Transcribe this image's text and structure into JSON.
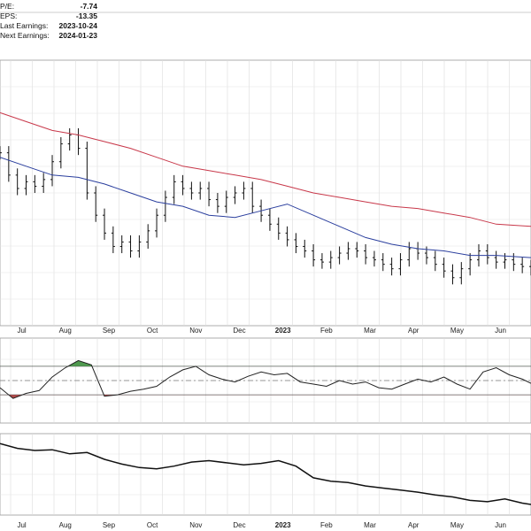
{
  "fundamentals": [
    {
      "label": "P/E:",
      "value": "-7.74"
    },
    {
      "label": "EPS:",
      "value": "-13.35"
    },
    {
      "label": "Last Earnings:",
      "value": "2023-10-24"
    },
    {
      "label": "Next Earnings:",
      "value": "2024-01-23"
    }
  ],
  "chart_data": {
    "type": "line",
    "title": "",
    "xlabel": "",
    "ylabel": "",
    "grid": true,
    "x_tick_labels": [
      "Jul",
      "Aug",
      "Sep",
      "Oct",
      "Nov",
      "Dec",
      "2023",
      "Feb",
      "Mar",
      "Apr",
      "May",
      "Jun"
    ],
    "x_tick_bold": [
      false,
      false,
      false,
      false,
      false,
      false,
      true,
      false,
      false,
      false,
      false,
      false
    ],
    "x_tick_positions": [
      0.5,
      1.5,
      2.5,
      3.5,
      4.5,
      5.5,
      6.5,
      7.5,
      8.5,
      9.5,
      10.5,
      11.5
    ],
    "xlim": [
      0,
      12.2
    ],
    "panels": [
      {
        "name": "price",
        "ylim": [
          0,
          100
        ],
        "series": [
          {
            "kind": "ohlc",
            "color": "#111111",
            "x": [
              0.0,
              0.2,
              0.4,
              0.6,
              0.8,
              1.0,
              1.2,
              1.4,
              1.6,
              1.8,
              2.0,
              2.2,
              2.4,
              2.6,
              2.8,
              3.0,
              3.2,
              3.4,
              3.6,
              3.8,
              4.0,
              4.2,
              4.4,
              4.6,
              4.8,
              5.0,
              5.2,
              5.4,
              5.6,
              5.8,
              6.0,
              6.2,
              6.4,
              6.6,
              6.8,
              7.0,
              7.2,
              7.4,
              7.6,
              7.8,
              8.0,
              8.2,
              8.4,
              8.6,
              8.8,
              9.0,
              9.2,
              9.4,
              9.6,
              9.8,
              10.0,
              10.2,
              10.4,
              10.6,
              10.8,
              11.0,
              11.2,
              11.4,
              11.6,
              11.8,
              12.0,
              12.2
            ],
            "close": [
              68,
              58,
              52,
              55,
              53,
              56,
              64,
              72,
              76,
              70,
              50,
              40,
              32,
              26,
              28,
              24,
              28,
              33,
              40,
              48,
              55,
              52,
              50,
              52,
              47,
              44,
              48,
              50,
              52,
              44,
              40,
              36,
              32,
              29,
              26,
              24,
              20,
              19,
              21,
              23,
              25,
              24,
              21,
              20,
              18,
              16,
              20,
              25,
              23,
              21,
              18,
              15,
              12,
              16,
              20,
              24,
              21,
              19,
              20,
              18,
              17,
              16
            ]
          },
          {
            "kind": "line",
            "name": "",
            "color": "#2b3f9e",
            "x": [
              0.0,
              0.6,
              1.2,
              1.8,
              2.4,
              3.0,
              3.6,
              4.2,
              4.8,
              5.4,
              6.0,
              6.6,
              7.2,
              7.8,
              8.4,
              9.0,
              9.6,
              10.2,
              10.8,
              11.4,
              12.2
            ],
            "values": [
              66,
              62,
              58,
              57,
              54,
              50,
              46,
              44,
              40,
              39,
              42,
              45,
              40,
              35,
              30,
              27,
              25,
              24,
              22,
              22,
              21
            ]
          },
          {
            "kind": "line",
            "name": "",
            "color": "#c8384a",
            "x": [
              0.0,
              0.6,
              1.2,
              1.8,
              2.4,
              3.0,
              3.6,
              4.2,
              4.8,
              5.4,
              6.0,
              6.6,
              7.2,
              7.8,
              8.4,
              9.0,
              9.6,
              10.2,
              10.8,
              11.4,
              12.2
            ],
            "values": [
              86,
              82,
              78,
              76,
              73,
              70,
              66,
              62,
              60,
              58,
              56,
              53,
              50,
              48,
              46,
              44,
              43,
              41,
              39,
              36,
              35
            ]
          }
        ]
      },
      {
        "name": "oscillator",
        "ylim": [
          0,
          100
        ],
        "reference_lines": [
          70,
          50,
          30
        ],
        "fill_above": 70,
        "fill_above_color": "#4f9a4f",
        "fill_below": 30,
        "fill_below_color": "#b04848",
        "series": [
          {
            "kind": "line",
            "name": "",
            "color": "#222222",
            "x": [
              0.0,
              0.3,
              0.6,
              0.9,
              1.2,
              1.5,
              1.8,
              2.1,
              2.4,
              2.7,
              3.0,
              3.3,
              3.6,
              3.9,
              4.2,
              4.5,
              4.8,
              5.1,
              5.4,
              5.7,
              6.0,
              6.3,
              6.6,
              6.9,
              7.2,
              7.5,
              7.8,
              8.1,
              8.4,
              8.7,
              9.0,
              9.3,
              9.6,
              9.9,
              10.2,
              10.5,
              10.8,
              11.1,
              11.4,
              11.7,
              12.0,
              12.2
            ],
            "values": [
              40,
              25,
              32,
              36,
              55,
              68,
              78,
              72,
              28,
              30,
              35,
              38,
              42,
              55,
              65,
              70,
              58,
              52,
              48,
              56,
              62,
              58,
              60,
              48,
              45,
              42,
              50,
              45,
              48,
              40,
              38,
              45,
              52,
              48,
              55,
              45,
              38,
              62,
              68,
              58,
              52,
              46
            ]
          }
        ]
      },
      {
        "name": "relative_strength",
        "ylim": [
          0,
          100
        ],
        "series": [
          {
            "kind": "line",
            "name": "",
            "color": "#111111",
            "x": [
              0.0,
              0.4,
              0.8,
              1.2,
              1.6,
              2.0,
              2.4,
              2.8,
              3.2,
              3.6,
              4.0,
              4.4,
              4.8,
              5.2,
              5.6,
              6.0,
              6.4,
              6.8,
              7.2,
              7.6,
              8.0,
              8.4,
              8.8,
              9.2,
              9.6,
              10.0,
              10.4,
              10.8,
              11.2,
              11.6,
              12.0,
              12.2
            ],
            "values": [
              95,
              88,
              85,
              86,
              80,
              82,
              72,
              65,
              60,
              58,
              62,
              68,
              70,
              67,
              64,
              66,
              70,
              62,
              45,
              40,
              38,
              33,
              30,
              27,
              24,
              20,
              17,
              12,
              10,
              14,
              8,
              6
            ]
          }
        ]
      }
    ]
  }
}
